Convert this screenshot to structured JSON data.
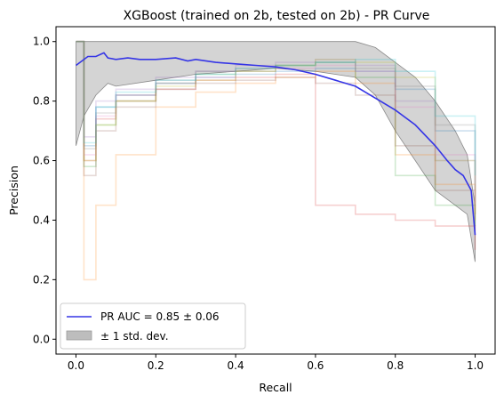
{
  "chart_data": {
    "type": "line",
    "title": "XGBoost (trained on 2b, tested on 2b) -  PR Curve",
    "xlabel": "Recall",
    "ylabel": "Precision",
    "xlim": [
      -0.05,
      1.05
    ],
    "ylim": [
      -0.05,
      1.05
    ],
    "xticks": [
      0.0,
      0.2,
      0.4,
      0.6,
      0.8,
      1.0
    ],
    "xtick_labels": [
      "0.0",
      "0.2",
      "0.4",
      "0.6",
      "0.8",
      "1.0"
    ],
    "yticks": [
      0.0,
      0.2,
      0.4,
      0.6,
      0.8,
      1.0
    ],
    "ytick_labels": [
      "0.0",
      "0.2",
      "0.4",
      "0.6",
      "0.8",
      "1.0"
    ],
    "grid": false,
    "legend_position": "lower-left",
    "series": [
      {
        "name": "PR AUC = 0.85 ± 0.06",
        "color": "#3535e6",
        "x": [
          0.0,
          0.03,
          0.05,
          0.07,
          0.08,
          0.1,
          0.13,
          0.16,
          0.2,
          0.25,
          0.28,
          0.3,
          0.35,
          0.4,
          0.45,
          0.5,
          0.55,
          0.6,
          0.65,
          0.7,
          0.75,
          0.8,
          0.85,
          0.9,
          0.93,
          0.95,
          0.97,
          0.99,
          1.0
        ],
        "y": [
          0.92,
          0.95,
          0.95,
          0.962,
          0.945,
          0.94,
          0.945,
          0.94,
          0.94,
          0.945,
          0.935,
          0.94,
          0.93,
          0.925,
          0.92,
          0.915,
          0.905,
          0.89,
          0.87,
          0.85,
          0.81,
          0.77,
          0.72,
          0.65,
          0.6,
          0.57,
          0.55,
          0.5,
          0.35
        ]
      }
    ],
    "band": {
      "name": "± 1 std. dev.",
      "color": "#bdbdbd",
      "x": [
        0.0,
        0.02,
        0.05,
        0.08,
        0.1,
        0.2,
        0.3,
        0.4,
        0.5,
        0.6,
        0.7,
        0.75,
        0.8,
        0.85,
        0.9,
        0.95,
        0.98,
        1.0
      ],
      "upper": [
        1.0,
        1.0,
        1.0,
        1.0,
        1.0,
        1.0,
        1.0,
        1.0,
        1.0,
        1.0,
        1.0,
        0.98,
        0.93,
        0.88,
        0.8,
        0.7,
        0.62,
        0.45
      ],
      "lower": [
        0.65,
        0.75,
        0.82,
        0.86,
        0.85,
        0.87,
        0.89,
        0.9,
        0.91,
        0.9,
        0.88,
        0.82,
        0.7,
        0.6,
        0.5,
        0.45,
        0.42,
        0.26
      ]
    },
    "fold_curves": [
      {
        "color": "#1f77b4",
        "x": [
          0.0,
          0.02,
          0.05,
          0.1,
          0.2,
          0.3,
          0.4,
          0.5,
          0.6,
          0.7,
          0.8,
          0.9,
          1.0
        ],
        "y": [
          1.0,
          0.65,
          0.78,
          0.82,
          0.86,
          0.88,
          0.89,
          0.9,
          0.91,
          0.9,
          0.84,
          0.7,
          0.45
        ]
      },
      {
        "color": "#ff7f0e",
        "x": [
          0.0,
          0.02,
          0.05,
          0.1,
          0.2,
          0.3,
          0.4,
          0.5,
          0.6,
          0.7,
          0.8,
          0.9,
          1.0
        ],
        "y": [
          1.0,
          0.2,
          0.45,
          0.62,
          0.78,
          0.83,
          0.86,
          0.88,
          0.9,
          0.86,
          0.62,
          0.52,
          0.4
        ]
      },
      {
        "color": "#2ca02c",
        "x": [
          0.0,
          0.02,
          0.05,
          0.1,
          0.2,
          0.3,
          0.4,
          0.5,
          0.6,
          0.7,
          0.8,
          0.9,
          1.0
        ],
        "y": [
          1.0,
          0.58,
          0.72,
          0.8,
          0.86,
          0.89,
          0.9,
          0.92,
          0.93,
          0.88,
          0.55,
          0.45,
          0.38
        ]
      },
      {
        "color": "#d62728",
        "x": [
          0.0,
          0.02,
          0.05,
          0.1,
          0.2,
          0.3,
          0.4,
          0.5,
          0.6,
          0.7,
          0.8,
          0.9,
          1.0
        ],
        "y": [
          1.0,
          0.6,
          0.74,
          0.8,
          0.84,
          0.87,
          0.88,
          0.89,
          0.45,
          0.42,
          0.4,
          0.38,
          0.3
        ]
      },
      {
        "color": "#9467bd",
        "x": [
          0.0,
          0.02,
          0.05,
          0.1,
          0.2,
          0.3,
          0.4,
          0.5,
          0.6,
          0.7,
          0.8,
          0.9,
          1.0
        ],
        "y": [
          1.0,
          0.68,
          0.8,
          0.84,
          0.88,
          0.9,
          0.92,
          0.93,
          0.94,
          0.92,
          0.8,
          0.6,
          0.46
        ]
      },
      {
        "color": "#8c564b",
        "x": [
          0.0,
          0.02,
          0.05,
          0.1,
          0.2,
          0.3,
          0.4,
          0.5,
          0.6,
          0.7,
          0.8,
          0.9,
          1.0
        ],
        "y": [
          1.0,
          0.55,
          0.7,
          0.78,
          0.84,
          0.86,
          0.87,
          0.88,
          0.86,
          0.82,
          0.65,
          0.5,
          0.42
        ]
      },
      {
        "color": "#e377c2",
        "x": [
          0.0,
          0.02,
          0.05,
          0.1,
          0.2,
          0.3,
          0.4,
          0.5,
          0.6,
          0.7,
          0.8,
          0.9,
          1.0
        ],
        "y": [
          1.0,
          0.62,
          0.75,
          0.82,
          0.86,
          0.88,
          0.9,
          0.91,
          0.92,
          0.9,
          0.78,
          0.62,
          0.44
        ]
      },
      {
        "color": "#7f7f7f",
        "x": [
          0.0,
          0.02,
          0.05,
          0.1,
          0.2,
          0.3,
          0.4,
          0.5,
          0.6,
          0.7,
          0.8,
          0.9,
          1.0
        ],
        "y": [
          1.0,
          0.64,
          0.76,
          0.82,
          0.87,
          0.9,
          0.91,
          0.92,
          0.93,
          0.91,
          0.85,
          0.72,
          0.5
        ]
      },
      {
        "color": "#bcbd22",
        "x": [
          0.0,
          0.02,
          0.05,
          0.1,
          0.2,
          0.3,
          0.4,
          0.5,
          0.6,
          0.7,
          0.8,
          0.9,
          1.0
        ],
        "y": [
          1.0,
          0.6,
          0.72,
          0.8,
          0.85,
          0.87,
          0.9,
          0.92,
          0.94,
          0.93,
          0.88,
          0.6,
          0.42
        ]
      },
      {
        "color": "#17becf",
        "x": [
          0.0,
          0.02,
          0.05,
          0.1,
          0.2,
          0.3,
          0.4,
          0.5,
          0.6,
          0.7,
          0.8,
          0.9,
          1.0
        ],
        "y": [
          1.0,
          0.66,
          0.78,
          0.83,
          0.87,
          0.89,
          0.91,
          0.92,
          0.93,
          0.94,
          0.9,
          0.75,
          0.55
        ]
      }
    ]
  }
}
